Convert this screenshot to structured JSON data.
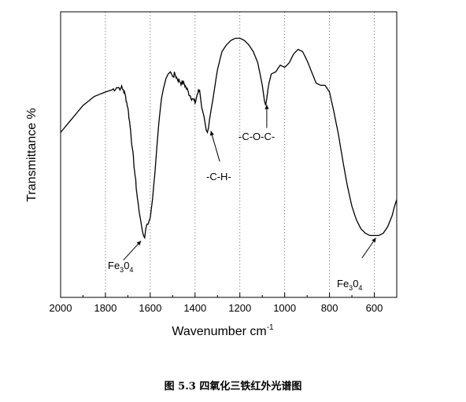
{
  "figure": {
    "caption": "图 5.3  四氧化三铁红外光谱图"
  },
  "chart_data": {
    "type": "line",
    "xlabel": "Wavenumber cm",
    "xlabel_superscript": "-1",
    "ylabel": "Transmittance %",
    "xlim": [
      2000,
      500
    ],
    "ylim": [
      0,
      100
    ],
    "x_ticks": [
      2000,
      1800,
      1600,
      1400,
      1200,
      1000,
      800,
      600
    ],
    "x_tick_labels": [
      "2000",
      "1800",
      "1600",
      "1400",
      "1200",
      "1000",
      "800",
      "600"
    ],
    "grid": "vertical-dotted",
    "series": [
      {
        "x": [
          2000,
          1950,
          1900,
          1850,
          1800,
          1770,
          1750,
          1730,
          1720,
          1710,
          1700,
          1690,
          1680,
          1670,
          1660,
          1650,
          1640,
          1635,
          1630,
          1625,
          1620,
          1615,
          1610,
          1600,
          1590,
          1580,
          1570,
          1560,
          1550,
          1540,
          1530,
          1520,
          1510,
          1500,
          1490,
          1480,
          1470,
          1460,
          1450,
          1440,
          1430,
          1420,
          1410,
          1400,
          1390,
          1380,
          1370,
          1360,
          1350,
          1345,
          1340,
          1335,
          1330,
          1320,
          1300,
          1280,
          1260,
          1240,
          1220,
          1200,
          1180,
          1160,
          1140,
          1120,
          1100,
          1090,
          1085,
          1080,
          1075,
          1070,
          1060,
          1040,
          1020,
          1000,
          980,
          960,
          940,
          920,
          900,
          880,
          860,
          840,
          820,
          800,
          780,
          760,
          740,
          720,
          700,
          680,
          660,
          640,
          620,
          600,
          580,
          560,
          540,
          520,
          510,
          500
        ],
        "y": [
          55,
          61,
          67,
          71,
          73,
          74,
          75,
          75,
          74,
          71,
          66,
          58,
          48,
          38,
          28,
          20,
          14,
          11,
          9,
          8,
          12,
          14,
          14,
          17,
          25,
          36,
          49,
          61,
          70,
          75,
          79,
          81,
          82,
          80,
          81,
          79,
          78,
          77,
          77,
          75,
          73,
          71,
          70,
          68,
          72,
          74,
          66,
          62,
          56,
          55,
          57,
          61,
          64,
          70,
          83,
          91,
          94,
          96,
          97,
          97,
          96,
          94,
          91,
          86,
          76,
          69,
          67,
          70,
          74,
          77,
          81,
          82,
          85,
          84,
          86,
          90,
          92,
          91,
          87,
          82,
          77,
          76,
          76,
          73,
          64,
          54,
          42,
          31,
          22,
          16,
          12,
          10,
          9,
          9,
          9,
          10,
          13,
          18,
          22,
          25
        ]
      }
    ],
    "annotations": [
      {
        "text": "Fe",
        "sub1": "3",
        "mid": "0",
        "sub2": "4",
        "x": 1627,
        "y": 8
      },
      {
        "text": "-C-H-",
        "x": 1340,
        "y": 57
      },
      {
        "text": "-C-O-C-",
        "x": 1080,
        "y": 68
      },
      {
        "text": "Fe",
        "sub1": "3",
        "mid": "0",
        "sub2": "4",
        "x": 600,
        "y": 9
      }
    ]
  }
}
